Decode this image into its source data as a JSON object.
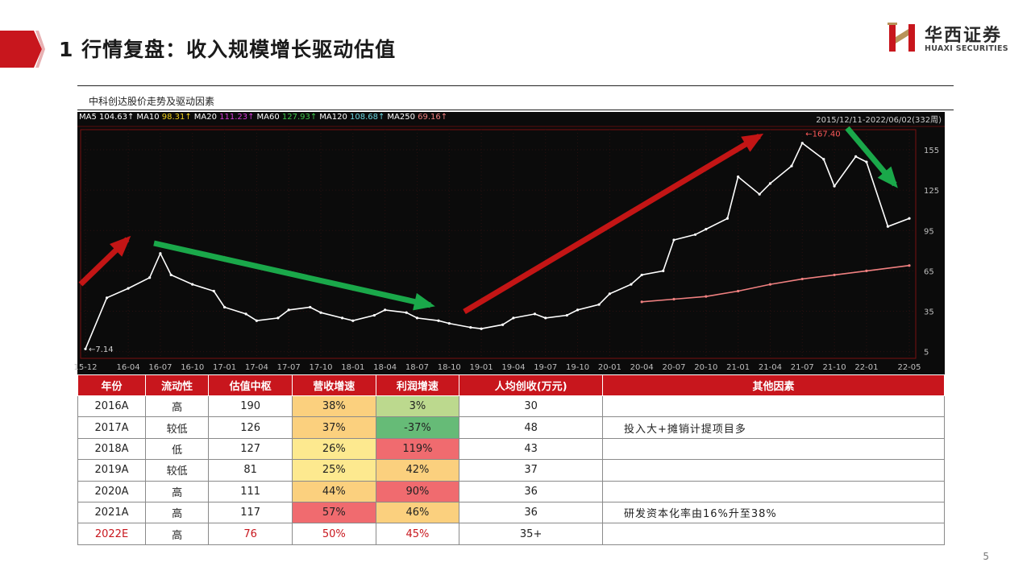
{
  "header": {
    "title": "1 行情复盘：收入规模增长驱动估值",
    "logo_cn": "华西证券",
    "logo_en": "HUAXI SECURITIES"
  },
  "chart": {
    "caption": "中科创达股价走势及驱动因素",
    "range": "2015/12/11-2022/06/02(332周)",
    "ma_legend": [
      {
        "label": "MA5",
        "value": "104.63↑",
        "color": "#ffffff",
        "value_color": "#ffffff"
      },
      {
        "label": "MA10",
        "value": "98.31↑",
        "color": "#ffffff",
        "value_color": "#f2d21c"
      },
      {
        "label": "MA20",
        "value": "111.23↑",
        "color": "#ffffff",
        "value_color": "#d43cd6"
      },
      {
        "label": "MA60",
        "value": "127.93↑",
        "color": "#ffffff",
        "value_color": "#3fc64a"
      },
      {
        "label": "MA120",
        "value": "108.68↑",
        "color": "#ffffff",
        "value_color": "#6ad6e0"
      },
      {
        "label": "MA250",
        "value": "69.16↑",
        "color": "#ffffff",
        "value_color": "#f08080"
      }
    ]
  },
  "chart_data": {
    "type": "line",
    "title": "中科创达股价走势及驱动因素",
    "x_ticks": [
      "15-12",
      "16-04",
      "16-07",
      "16-10",
      "17-01",
      "17-04",
      "17-07",
      "17-10",
      "18-01",
      "18-04",
      "18-07",
      "18-10",
      "19-01",
      "19-04",
      "19-07",
      "19-10",
      "20-01",
      "20-04",
      "20-07",
      "20-10",
      "21-01",
      "21-04",
      "21-07",
      "21-10",
      "22-01",
      "22-05"
    ],
    "y_ticks": [
      5,
      35,
      65,
      95,
      125,
      155
    ],
    "ylim": [
      0,
      170
    ],
    "annotations": [
      {
        "label": "167.40",
        "x": "21-07",
        "y": 167.4
      },
      {
        "label": "7.14",
        "x": "15-12",
        "y": 7.14
      }
    ],
    "series": [
      {
        "name": "MA5",
        "color": "#ffffff",
        "x": [
          "15-12",
          "16-02",
          "16-04",
          "16-06",
          "16-07",
          "16-08",
          "16-10",
          "16-12",
          "17-01",
          "17-03",
          "17-04",
          "17-06",
          "17-07",
          "17-09",
          "17-10",
          "17-12",
          "18-01",
          "18-03",
          "18-04",
          "18-06",
          "18-07",
          "18-09",
          "18-10",
          "18-12",
          "19-01",
          "19-03",
          "19-04",
          "19-06",
          "19-07",
          "19-09",
          "19-10",
          "19-12",
          "20-01",
          "20-03",
          "20-04",
          "20-06",
          "20-07",
          "20-09",
          "20-10",
          "20-12",
          "21-01",
          "21-03",
          "21-04",
          "21-06",
          "21-07",
          "21-09",
          "21-10",
          "21-12",
          "22-01",
          "22-03",
          "22-05"
        ],
        "values": [
          7,
          45,
          52,
          60,
          78,
          62,
          55,
          50,
          38,
          33,
          28,
          30,
          36,
          38,
          34,
          30,
          28,
          32,
          36,
          34,
          30,
          28,
          26,
          23,
          22,
          25,
          30,
          33,
          30,
          32,
          36,
          40,
          48,
          55,
          62,
          65,
          88,
          92,
          96,
          104,
          135,
          122,
          130,
          143,
          160,
          148,
          128,
          150,
          146,
          98,
          104
        ]
      },
      {
        "name": "MA250",
        "color": "#f08080",
        "x": [
          "20-04",
          "20-07",
          "20-10",
          "21-01",
          "21-04",
          "21-07",
          "21-10",
          "22-01",
          "22-05"
        ],
        "values": [
          42,
          44,
          46,
          50,
          55,
          59,
          62,
          65,
          69
        ]
      }
    ]
  },
  "table": {
    "headers": [
      "年份",
      "流动性",
      "估值中枢",
      "营收增速",
      "利润增速",
      "人均创收(万元)",
      "其他因素"
    ],
    "rows": [
      {
        "year": "2016A",
        "liquidity": "高",
        "valuation": "190",
        "revenue": "38%",
        "rev_color": "#fbd07e",
        "profit": "3%",
        "prof_color": "#bcd98e",
        "per_capita": "30",
        "note": ""
      },
      {
        "year": "2017A",
        "liquidity": "较低",
        "valuation": "126",
        "revenue": "37%",
        "rev_color": "#fbd07e",
        "profit": "-37%",
        "prof_color": "#66bb77",
        "per_capita": "48",
        "note": "投入大+摊销计提项目多"
      },
      {
        "year": "2018A",
        "liquidity": "低",
        "valuation": "127",
        "revenue": "26%",
        "rev_color": "#fde98f",
        "profit": "119%",
        "prof_color": "#f06b6f",
        "per_capita": "43",
        "note": ""
      },
      {
        "year": "2019A",
        "liquidity": "较低",
        "valuation": "81",
        "revenue": "25%",
        "rev_color": "#fde98f",
        "profit": "42%",
        "prof_color": "#fbd07e",
        "per_capita": "37",
        "note": ""
      },
      {
        "year": "2020A",
        "liquidity": "高",
        "valuation": "111",
        "revenue": "44%",
        "rev_color": "#fbd07e",
        "profit": "90%",
        "prof_color": "#f06b6f",
        "per_capita": "36",
        "note": ""
      },
      {
        "year": "2021A",
        "liquidity": "高",
        "valuation": "117",
        "revenue": "57%",
        "rev_color": "#f06b6f",
        "profit": "46%",
        "prof_color": "#fbd07e",
        "per_capita": "36",
        "note": "研发资本化率由16%升至38%"
      },
      {
        "year": "2022E",
        "liquidity": "高",
        "valuation": "76",
        "revenue": "50%",
        "rev_color": "#ffffff",
        "profit": "45%",
        "prof_color": "#ffffff",
        "per_capita": "35+",
        "note": ""
      }
    ]
  },
  "page_number": "5"
}
